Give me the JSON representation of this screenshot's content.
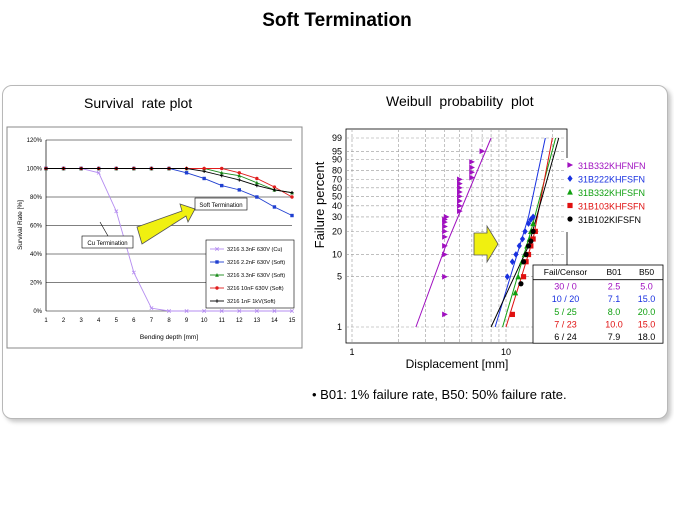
{
  "page": {
    "title": "Soft Termination"
  },
  "left_panel": {
    "title": "Survival  rate plot"
  },
  "right_panel": {
    "title": "Weibull  probability  plot"
  },
  "footnote": "• B01: 1% failure rate, B50: 50% failure rate.",
  "chart_data": [
    {
      "type": "line",
      "title": "",
      "xlabel": "Bending depth [mm]",
      "ylabel": "Survival Rate [%]",
      "x": [
        1,
        2,
        3,
        4,
        5,
        6,
        7,
        8,
        9,
        10,
        11,
        12,
        13,
        14,
        15
      ],
      "xlim": [
        1,
        15
      ],
      "ylim": [
        0,
        120
      ],
      "y_ticks": [
        "0%",
        "20%",
        "40%",
        "60%",
        "80%",
        "100%",
        "120%"
      ],
      "grid": "horizontal",
      "legend_position": "lower-right",
      "annotations": [
        "Cu Termination",
        "Soft Termination"
      ],
      "series": [
        {
          "name": "3216 3.3nF 630V (Cu)",
          "color": "#b48cf0",
          "marker": "x",
          "values": [
            100,
            100,
            100,
            97,
            70,
            27,
            2,
            0,
            0,
            0,
            0,
            0,
            0,
            0,
            0
          ]
        },
        {
          "name": "3216 2.2nF 630V (Soft)",
          "color": "#1f3fd0",
          "marker": "square",
          "values": [
            100,
            100,
            100,
            100,
            100,
            100,
            100,
            100,
            97,
            93,
            88,
            85,
            80,
            73,
            67
          ]
        },
        {
          "name": "3216 3.3nF 630V (Soft)",
          "color": "#1a8a1a",
          "marker": "triangle",
          "values": [
            100,
            100,
            100,
            100,
            100,
            100,
            100,
            100,
            100,
            100,
            97,
            95,
            90,
            85,
            83
          ]
        },
        {
          "name": "3216 10nF 630V (Soft)",
          "color": "#e01c1c",
          "marker": "circle",
          "values": [
            100,
            100,
            100,
            100,
            100,
            100,
            100,
            100,
            100,
            100,
            100,
            97,
            93,
            87,
            80
          ]
        },
        {
          "name": "3216 1nF 1kV(Soft)",
          "color": "#000000",
          "marker": "plus",
          "values": [
            100,
            100,
            100,
            100,
            100,
            100,
            100,
            100,
            100,
            98,
            95,
            92,
            88,
            85,
            83
          ]
        }
      ]
    },
    {
      "type": "scatter",
      "title": "",
      "xlabel": "Displacement [mm]",
      "ylabel": "Failure percent",
      "x_scale": "log",
      "y_scale": "weibull",
      "x_tick_labels": [
        "1",
        "10"
      ],
      "y_ticks": [
        1,
        5,
        10,
        20,
        30,
        40,
        50,
        60,
        70,
        80,
        90,
        95,
        99
      ],
      "legend_position": "right",
      "series": [
        {
          "name": "31B332KHFNFN",
          "color": "#a010c0",
          "marker": "triangle-right",
          "points": [
            [
              4,
              1.5
            ],
            [
              4,
              5
            ],
            [
              4,
              10
            ],
            [
              4,
              13
            ],
            [
              4,
              17
            ],
            [
              4,
              20
            ],
            [
              4,
              23
            ],
            [
              4,
              26
            ],
            [
              4,
              28
            ],
            [
              4.1,
              30
            ],
            [
              5,
              35
            ],
            [
              5,
              40
            ],
            [
              5,
              45
            ],
            [
              5,
              50
            ],
            [
              5,
              55
            ],
            [
              5,
              60
            ],
            [
              5,
              65
            ],
            [
              5,
              70
            ],
            [
              6,
              72
            ],
            [
              6,
              78
            ],
            [
              6,
              83
            ],
            [
              6,
              88
            ],
            [
              7,
              95
            ]
          ],
          "fit": [
            [
              2.6,
              1
            ],
            [
              4,
              12
            ],
            [
              8,
              99
            ]
          ]
        },
        {
          "name": "31B222KHFSFN",
          "color": "#1830e0",
          "marker": "diamond",
          "points": [
            [
              10.2,
              5
            ],
            [
              11,
              8
            ],
            [
              11.6,
              10
            ],
            [
              12.2,
              13
            ],
            [
              12.8,
              16
            ],
            [
              13.3,
              20
            ],
            [
              14,
              25
            ],
            [
              14.5,
              28
            ],
            [
              15,
              30
            ]
          ],
          "fit": [
            [
              8.5,
              1
            ],
            [
              14,
              30
            ],
            [
              18,
              99
            ]
          ]
        },
        {
          "name": "31B332KHFSFN",
          "color": "#10a010",
          "marker": "triangle",
          "points": [
            [
              11.5,
              3
            ],
            [
              12,
              5
            ],
            [
              12.7,
              8
            ],
            [
              13.2,
              10
            ],
            [
              13.7,
              13
            ],
            [
              14.2,
              16
            ],
            [
              14.5,
              20
            ],
            [
              15,
              25
            ]
          ],
          "fit": [
            [
              9.5,
              1
            ],
            [
              14.5,
              20
            ],
            [
              21,
              99
            ]
          ]
        },
        {
          "name": "31B103KHFSFN",
          "color": "#e01010",
          "marker": "square",
          "points": [
            [
              11,
              1.5
            ],
            [
              13,
              5
            ],
            [
              13.5,
              8
            ],
            [
              14,
              10
            ],
            [
              14.5,
              13
            ],
            [
              15,
              16
            ],
            [
              15.5,
              20
            ]
          ],
          "fit": [
            [
              10,
              1
            ],
            [
              15,
              16
            ],
            [
              20,
              99
            ]
          ]
        },
        {
          "name": "31B102KIFSFN",
          "color": "#000000",
          "marker": "circle",
          "points": [
            [
              12.5,
              4
            ],
            [
              13,
              8
            ],
            [
              13.5,
              10
            ],
            [
              14,
              13
            ],
            [
              14.5,
              15
            ],
            [
              15,
              20
            ]
          ],
          "fit": [
            [
              8,
              1
            ],
            [
              14,
              13
            ],
            [
              22,
              99
            ]
          ]
        }
      ],
      "table": {
        "headers": [
          "Fail/Censor",
          "B01",
          "B50"
        ],
        "rows": [
          {
            "color": "#a010c0",
            "cells": [
              "30 / 0",
              "2.5",
              "5.0"
            ]
          },
          {
            "color": "#1830e0",
            "cells": [
              "10 / 20",
              "7.1",
              "15.0"
            ]
          },
          {
            "color": "#10a010",
            "cells": [
              "5 / 25",
              "8.0",
              "20.0"
            ]
          },
          {
            "color": "#e01010",
            "cells": [
              "7 / 23",
              "10.0",
              "15.0"
            ]
          },
          {
            "color": "#000000",
            "cells": [
              "6 / 24",
              "7.9",
              "18.0"
            ]
          }
        ]
      }
    }
  ]
}
